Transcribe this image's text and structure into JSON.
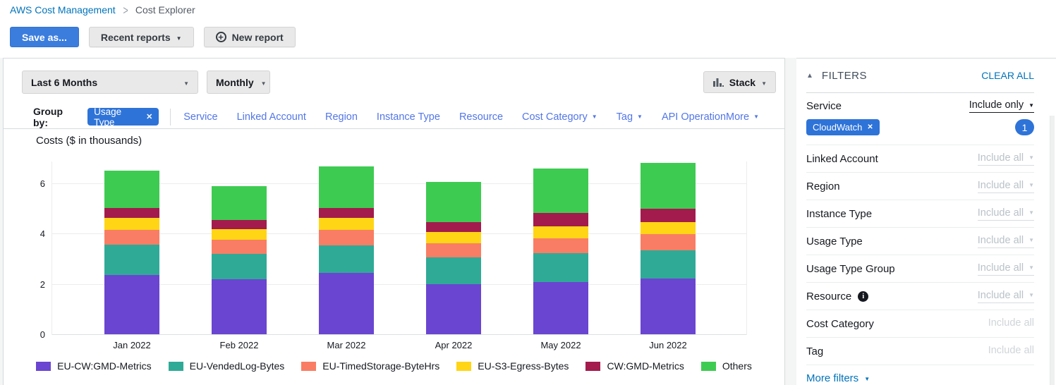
{
  "breadcrumb": {
    "root": "AWS Cost Management",
    "current": "Cost Explorer"
  },
  "toolbar": {
    "save_as": "Save as...",
    "recent_reports": "Recent reports",
    "new_report": "New report"
  },
  "controls": {
    "date_range": "Last 6 Months",
    "granularity": "Monthly",
    "chart_style": "Stack"
  },
  "group_by": {
    "label": "Group by:",
    "selected": {
      "label": "Usage Type"
    },
    "links": [
      {
        "label": "Service",
        "caret": false
      },
      {
        "label": "Linked Account",
        "caret": false
      },
      {
        "label": "Region",
        "caret": false
      },
      {
        "label": "Instance Type",
        "caret": false
      },
      {
        "label": "Resource",
        "caret": false
      },
      {
        "label": "Cost Category",
        "caret": true
      },
      {
        "label": "Tag",
        "caret": true
      },
      {
        "label": "API Operation",
        "caret": false
      }
    ],
    "more": {
      "label": "More"
    }
  },
  "chart_data": {
    "type": "bar",
    "stacked": true,
    "title": "Costs ($ in thousands)",
    "categories": [
      "Jan 2022",
      "Feb 2022",
      "Mar 2022",
      "Apr 2022",
      "May 2022",
      "Jun 2022"
    ],
    "series": [
      {
        "name": "EU-CW:GMD-Metrics",
        "color": "#6a45d1",
        "values": [
          2.36,
          2.19,
          2.45,
          1.98,
          2.08,
          2.2
        ]
      },
      {
        "name": "EU-VendedLog-Bytes",
        "color": "#2faa97",
        "values": [
          1.21,
          1.01,
          1.08,
          1.06,
          1.15,
          1.11
        ]
      },
      {
        "name": "EU-TimedStorage-ByteHrs",
        "color": "#f97d64",
        "values": [
          0.58,
          0.56,
          0.61,
          0.56,
          0.58,
          0.64
        ]
      },
      {
        "name": "EU-S3-Egress-Bytes",
        "color": "#ffd515",
        "values": [
          0.47,
          0.42,
          0.47,
          0.45,
          0.49,
          0.49
        ]
      },
      {
        "name": "CW:GMD-Metrics",
        "color": "#a31b4d",
        "values": [
          0.4,
          0.36,
          0.39,
          0.4,
          0.53,
          0.52
        ]
      },
      {
        "name": "Others",
        "color": "#3ecb52",
        "values": [
          1.48,
          1.34,
          1.66,
          1.61,
          1.76,
          1.83
        ]
      }
    ],
    "yticks": [
      0,
      2,
      4,
      6
    ],
    "ylim": [
      0,
      6.9
    ],
    "grid": true,
    "legend_position": "bottom"
  },
  "filters": {
    "title": "FILTERS",
    "clear_all": "CLEAR ALL",
    "rows": [
      {
        "label": "Service",
        "value": "Include only",
        "caret": true,
        "active": true,
        "chips": [
          "CloudWatch"
        ],
        "badge": "1"
      },
      {
        "label": "Linked Account",
        "value": "Include all",
        "caret": true
      },
      {
        "label": "Region",
        "value": "Include all",
        "caret": true
      },
      {
        "label": "Instance Type",
        "value": "Include all",
        "caret": true
      },
      {
        "label": "Usage Type",
        "value": "Include all",
        "caret": true
      },
      {
        "label": "Usage Type Group",
        "value": "Include all",
        "caret": true
      },
      {
        "label": "Resource",
        "value": "Include all",
        "caret": true,
        "info": true
      },
      {
        "label": "Cost Category",
        "value": "Include all",
        "caret": false
      },
      {
        "label": "Tag",
        "value": "Include all",
        "caret": false
      }
    ],
    "more_filters": {
      "label": "More filters"
    }
  },
  "colors": {
    "breadcrumb_link": "#0073bb",
    "primary_button": "#3b7ddd",
    "chip_blue": "#2e73d8",
    "groupby_link": "#5276e8"
  }
}
